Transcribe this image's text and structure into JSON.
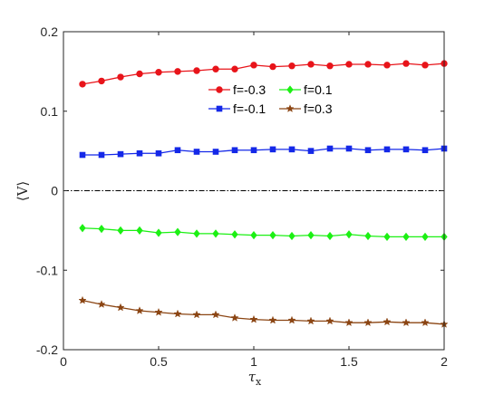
{
  "chart_data": {
    "type": "line",
    "title": "",
    "xlabel_main": "τ",
    "xlabel_sub": "x",
    "ylabel": "⟨V⟩",
    "xlim": [
      0,
      2
    ],
    "ylim": [
      -0.2,
      0.2
    ],
    "xticks": [
      0,
      0.5,
      1,
      1.5,
      2
    ],
    "xtick_labels": [
      "0",
      "0.5",
      "1",
      "1.5",
      "2"
    ],
    "yticks": [
      -0.2,
      -0.1,
      0,
      0.1,
      0.2
    ],
    "ytick_labels": [
      "-0.2",
      "-0.1",
      "0",
      "0.1",
      "0.2"
    ],
    "grid": false,
    "legend_position": "top-center",
    "reference_line": {
      "y": 0,
      "style": "dash-dot",
      "color": "#000000"
    },
    "x": [
      0.1,
      0.2,
      0.3,
      0.4,
      0.5,
      0.6,
      0.7,
      0.8,
      0.9,
      1.0,
      1.1,
      1.2,
      1.3,
      1.4,
      1.5,
      1.6,
      1.7,
      1.8,
      1.9,
      2.0
    ],
    "series": [
      {
        "name": "f=-0.3",
        "color": "#e8141a",
        "marker": "circle",
        "values": [
          0.134,
          0.138,
          0.143,
          0.147,
          0.149,
          0.15,
          0.151,
          0.153,
          0.153,
          0.158,
          0.156,
          0.157,
          0.159,
          0.157,
          0.159,
          0.159,
          0.158,
          0.16,
          0.158,
          0.16
        ]
      },
      {
        "name": "f=0.1",
        "color": "#1cf014",
        "marker": "diamond",
        "values": [
          -0.047,
          -0.048,
          -0.05,
          -0.05,
          -0.053,
          -0.052,
          -0.054,
          -0.054,
          -0.055,
          -0.056,
          -0.056,
          -0.057,
          -0.056,
          -0.057,
          -0.055,
          -0.057,
          -0.058,
          -0.058,
          -0.058,
          -0.058
        ]
      },
      {
        "name": "f=-0.1",
        "color": "#1428e8",
        "marker": "square",
        "values": [
          0.045,
          0.045,
          0.046,
          0.047,
          0.047,
          0.051,
          0.049,
          0.049,
          0.051,
          0.051,
          0.052,
          0.052,
          0.05,
          0.053,
          0.053,
          0.051,
          0.052,
          0.052,
          0.051,
          0.053
        ]
      },
      {
        "name": "f=0.3",
        "color": "#8b4513",
        "marker": "star",
        "values": [
          -0.138,
          -0.143,
          -0.147,
          -0.151,
          -0.153,
          -0.155,
          -0.156,
          -0.156,
          -0.16,
          -0.162,
          -0.163,
          -0.163,
          -0.164,
          -0.164,
          -0.166,
          -0.166,
          -0.165,
          -0.166,
          -0.166,
          -0.168
        ]
      }
    ],
    "legend_order": [
      "f=-0.3",
      "f=0.1",
      "f=-0.1",
      "f=0.3"
    ]
  }
}
